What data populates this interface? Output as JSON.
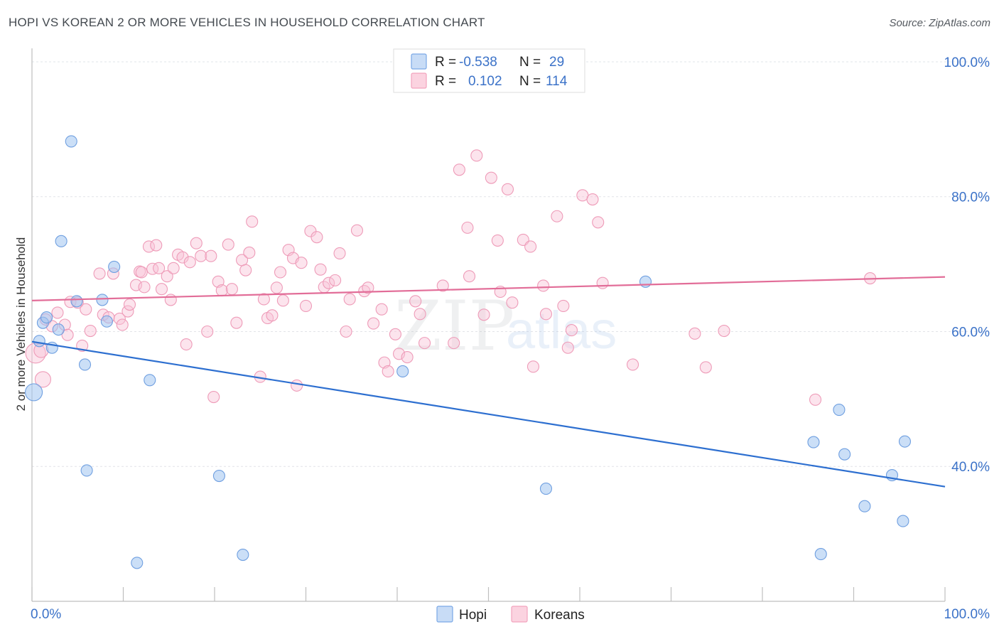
{
  "title": "HOPI VS KOREAN 2 OR MORE VEHICLES IN HOUSEHOLD CORRELATION CHART",
  "source": "Source: ZipAtlas.com",
  "watermark": {
    "zip": "ZIP",
    "atlas": "atlas"
  },
  "stats": [
    {
      "r_label": "R =",
      "r_value": "-0.538",
      "n_label": "N =",
      "n_value": "29",
      "color": "#7aa8e6"
    },
    {
      "r_label": "R =",
      "r_value": "0.102",
      "n_label": "N =",
      "n_value": "114",
      "color": "#f2a3bd"
    }
  ],
  "legend": [
    {
      "label": "Hopi",
      "color": "#7aa8e6"
    },
    {
      "label": "Koreans",
      "color": "#f2a3bd"
    }
  ],
  "chart_data": {
    "type": "scatter",
    "title": "HOPI VS KOREAN 2 OR MORE VEHICLES IN HOUSEHOLD CORRELATION CHART",
    "xlabel": "",
    "ylabel": "2 or more Vehicles in Household",
    "xlim": [
      0,
      100
    ],
    "ylim": [
      20,
      102
    ],
    "x_tick_labels": [
      "0.0%",
      "100.0%"
    ],
    "y_ticks": [
      40,
      60,
      80,
      100
    ],
    "y_tick_labels": [
      "40.0%",
      "60.0%",
      "80.0%",
      "100.0%"
    ],
    "grid": true,
    "legend_position": "bottom-center",
    "series": [
      {
        "name": "Hopi",
        "color": "#7aa8e6",
        "line_color": "#2d6fd0",
        "trend": {
          "x": [
            0,
            100
          ],
          "y": [
            58.5,
            37.0
          ]
        },
        "points": [
          [
            0.2,
            51.0,
            12
          ],
          [
            0.8,
            58.6,
            8
          ],
          [
            1.2,
            61.3,
            8
          ],
          [
            1.6,
            62.1,
            8
          ],
          [
            2.2,
            57.6,
            8
          ],
          [
            2.9,
            60.3,
            8
          ],
          [
            3.2,
            73.4,
            8
          ],
          [
            4.3,
            88.2,
            8
          ],
          [
            4.9,
            64.5,
            8
          ],
          [
            5.8,
            55.1,
            8
          ],
          [
            6.0,
            39.4,
            8
          ],
          [
            7.7,
            64.7,
            8
          ],
          [
            8.2,
            61.5,
            8
          ],
          [
            9.0,
            69.6,
            8
          ],
          [
            11.5,
            25.7,
            8
          ],
          [
            12.9,
            52.8,
            8
          ],
          [
            20.5,
            38.6,
            8
          ],
          [
            23.1,
            26.9,
            8
          ],
          [
            40.6,
            54.1,
            8
          ],
          [
            56.3,
            36.7,
            8
          ],
          [
            67.2,
            67.4,
            8
          ],
          [
            85.6,
            43.6,
            8
          ],
          [
            86.4,
            27.0,
            8
          ],
          [
            88.4,
            48.4,
            8
          ],
          [
            89.0,
            41.8,
            8
          ],
          [
            91.2,
            34.1,
            8
          ],
          [
            94.2,
            38.7,
            8
          ],
          [
            95.4,
            31.9,
            8
          ],
          [
            95.6,
            43.7,
            8
          ]
        ]
      },
      {
        "name": "Koreans",
        "color": "#f2a3bd",
        "line_color": "#e26d98",
        "trend": {
          "x": [
            0,
            100
          ],
          "y": [
            64.6,
            68.1
          ]
        },
        "points": [
          [
            0.4,
            56.8,
            14
          ],
          [
            1.0,
            57.2,
            10
          ],
          [
            1.2,
            52.9,
            11
          ],
          [
            1.5,
            61.8,
            8
          ],
          [
            2.2,
            60.8,
            8
          ],
          [
            2.8,
            62.8,
            8
          ],
          [
            3.6,
            61.0,
            8
          ],
          [
            3.9,
            59.5,
            8
          ],
          [
            4.2,
            64.4,
            8
          ],
          [
            5.0,
            64.3,
            8
          ],
          [
            5.5,
            57.9,
            8
          ],
          [
            5.9,
            63.3,
            8
          ],
          [
            6.4,
            60.1,
            8
          ],
          [
            7.4,
            68.6,
            8
          ],
          [
            7.8,
            62.5,
            8
          ],
          [
            8.4,
            62.1,
            8
          ],
          [
            8.9,
            68.6,
            8
          ],
          [
            9.6,
            61.9,
            8
          ],
          [
            9.9,
            61.0,
            8
          ],
          [
            10.5,
            63.0,
            8
          ],
          [
            10.7,
            64.0,
            8
          ],
          [
            11.4,
            66.9,
            8
          ],
          [
            11.8,
            68.9,
            8
          ],
          [
            12.0,
            68.8,
            8
          ],
          [
            12.3,
            66.6,
            8
          ],
          [
            12.8,
            72.6,
            8
          ],
          [
            13.2,
            69.3,
            8
          ],
          [
            13.6,
            72.8,
            8
          ],
          [
            13.9,
            69.4,
            8
          ],
          [
            14.2,
            66.3,
            8
          ],
          [
            14.8,
            68.2,
            8
          ],
          [
            15.2,
            64.7,
            8
          ],
          [
            15.5,
            69.4,
            8
          ],
          [
            16.0,
            71.4,
            8
          ],
          [
            16.5,
            71.0,
            8
          ],
          [
            16.9,
            58.1,
            8
          ],
          [
            17.3,
            70.3,
            8
          ],
          [
            18.0,
            73.1,
            8
          ],
          [
            18.5,
            71.2,
            8
          ],
          [
            19.2,
            60.0,
            8
          ],
          [
            19.6,
            71.2,
            8
          ],
          [
            19.9,
            50.3,
            8
          ],
          [
            20.4,
            67.4,
            8
          ],
          [
            20.8,
            66.1,
            8
          ],
          [
            21.5,
            72.9,
            8
          ],
          [
            21.9,
            66.3,
            8
          ],
          [
            22.4,
            61.3,
            8
          ],
          [
            23.0,
            70.6,
            8
          ],
          [
            23.4,
            69.1,
            8
          ],
          [
            23.8,
            71.7,
            8
          ],
          [
            24.1,
            76.3,
            8
          ],
          [
            25.0,
            53.3,
            8
          ],
          [
            25.4,
            64.8,
            8
          ],
          [
            25.8,
            62.0,
            8
          ],
          [
            26.3,
            62.4,
            8
          ],
          [
            26.8,
            66.5,
            8
          ],
          [
            27.2,
            68.8,
            8
          ],
          [
            27.5,
            64.6,
            8
          ],
          [
            28.1,
            72.1,
            8
          ],
          [
            28.6,
            70.9,
            8
          ],
          [
            29.0,
            52.0,
            8
          ],
          [
            29.5,
            70.2,
            8
          ],
          [
            30.0,
            63.8,
            8
          ],
          [
            30.5,
            74.9,
            8
          ],
          [
            31.2,
            74.0,
            8
          ],
          [
            31.6,
            69.2,
            8
          ],
          [
            32.0,
            66.6,
            8
          ],
          [
            32.5,
            67.2,
            8
          ],
          [
            33.2,
            67.6,
            8
          ],
          [
            33.7,
            71.6,
            8
          ],
          [
            34.4,
            60.0,
            8
          ],
          [
            34.8,
            64.8,
            8
          ],
          [
            35.6,
            75.0,
            8
          ],
          [
            36.4,
            66.0,
            8
          ],
          [
            36.8,
            66.5,
            8
          ],
          [
            37.4,
            61.2,
            8
          ],
          [
            38.3,
            63.3,
            8
          ],
          [
            38.6,
            55.4,
            8
          ],
          [
            39.0,
            54.1,
            8
          ],
          [
            39.8,
            59.6,
            8
          ],
          [
            40.2,
            56.7,
            8
          ],
          [
            41.1,
            56.2,
            8
          ],
          [
            42.0,
            64.5,
            8
          ],
          [
            42.5,
            62.6,
            8
          ],
          [
            43.0,
            58.3,
            8
          ],
          [
            45.0,
            66.8,
            8
          ],
          [
            46.2,
            58.3,
            8
          ],
          [
            46.8,
            84.0,
            8
          ],
          [
            47.7,
            75.4,
            8
          ],
          [
            47.9,
            68.2,
            8
          ],
          [
            48.7,
            86.1,
            8
          ],
          [
            49.5,
            62.5,
            8
          ],
          [
            50.3,
            82.8,
            8
          ],
          [
            51.0,
            73.5,
            8
          ],
          [
            51.3,
            65.9,
            8
          ],
          [
            52.1,
            81.1,
            8
          ],
          [
            52.6,
            64.3,
            8
          ],
          [
            53.8,
            73.6,
            8
          ],
          [
            54.6,
            72.6,
            8
          ],
          [
            54.9,
            54.8,
            8
          ],
          [
            56.0,
            66.8,
            8
          ],
          [
            56.3,
            62.6,
            8
          ],
          [
            57.5,
            77.1,
            8
          ],
          [
            58.2,
            63.8,
            8
          ],
          [
            58.7,
            57.6,
            8
          ],
          [
            59.1,
            60.2,
            8
          ],
          [
            60.3,
            80.2,
            8
          ],
          [
            61.4,
            79.6,
            8
          ],
          [
            62.0,
            76.2,
            8
          ],
          [
            62.5,
            67.2,
            8
          ],
          [
            65.8,
            55.1,
            8
          ],
          [
            72.6,
            59.7,
            8
          ],
          [
            73.8,
            54.7,
            8
          ],
          [
            75.8,
            60.1,
            8
          ],
          [
            85.8,
            49.9,
            8
          ],
          [
            91.8,
            67.9,
            8
          ]
        ]
      }
    ]
  }
}
